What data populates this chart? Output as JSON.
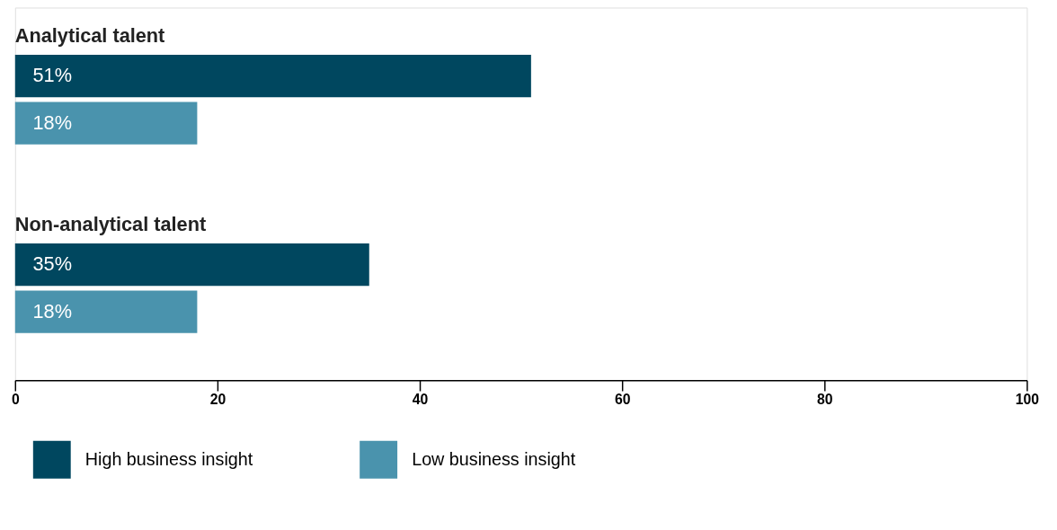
{
  "chart_data": {
    "type": "bar",
    "orientation": "horizontal",
    "categories": [
      "Analytical talent",
      "Non-analytical talent"
    ],
    "series": [
      {
        "name": "High business insight",
        "color": "#00475f",
        "values": [
          51,
          35
        ],
        "value_labels": [
          "51%",
          "35%"
        ]
      },
      {
        "name": "Low business insight",
        "color": "#4a93ad",
        "values": [
          18,
          18
        ],
        "value_labels": [
          "18%",
          "18%"
        ]
      }
    ],
    "xlim": [
      0,
      100
    ],
    "xticks": [
      0,
      20,
      40,
      60,
      80,
      100
    ],
    "grid": false,
    "legend": "bottom"
  }
}
